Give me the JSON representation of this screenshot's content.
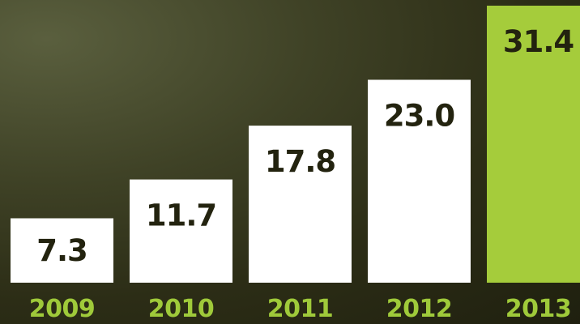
{
  "chart_data": {
    "type": "bar",
    "categories": [
      "2009",
      "2010",
      "2011",
      "2012",
      "2013"
    ],
    "values": [
      7.3,
      11.7,
      17.8,
      23.0,
      31.4
    ],
    "value_labels": [
      "7.3",
      "11.7",
      "17.8",
      "23.0",
      "31.4"
    ],
    "title": "",
    "xlabel": "",
    "ylabel": "",
    "ylim": [
      0,
      31.4
    ],
    "grid": false,
    "legend": "none",
    "colors": {
      "default_bar": "#ffffff",
      "highlight_bar": "#a5cc3b",
      "value_text": "#23230f",
      "tick_text": "#9fca3a"
    },
    "highlight_index": 4
  }
}
